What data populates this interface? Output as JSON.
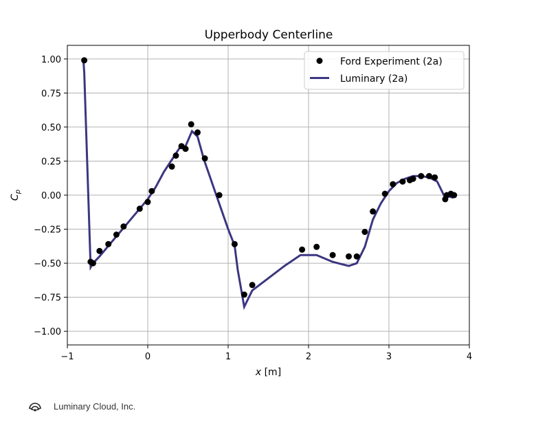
{
  "chart_data": {
    "type": "line",
    "title": "Upperbody Centerline",
    "xlabel": "x [m]",
    "ylabel": "Cp",
    "xlim": [
      -1,
      4
    ],
    "ylim": [
      -1.1,
      1.1
    ],
    "xticks": [
      -1,
      0,
      1,
      2,
      3,
      4
    ],
    "yticks": [
      -1.0,
      -0.75,
      -0.5,
      -0.25,
      0.0,
      0.25,
      0.5,
      0.75,
      1.0
    ],
    "xtick_labels": [
      "−1",
      "0",
      "1",
      "2",
      "3",
      "4"
    ],
    "ytick_labels": [
      "−1.00",
      "−0.75",
      "−0.50",
      "−0.25",
      "0.00",
      "0.25",
      "0.50",
      "0.75",
      "1.00"
    ],
    "grid": true,
    "legend_position": "top-right",
    "series": [
      {
        "name": "Ford Experiment (2a)",
        "kind": "scatter",
        "color": "#000000",
        "x": [
          -0.79,
          -0.71,
          -0.68,
          -0.6,
          -0.49,
          -0.39,
          -0.3,
          -0.1,
          0.0,
          0.05,
          0.3,
          0.35,
          0.42,
          0.47,
          0.54,
          0.62,
          0.71,
          0.89,
          1.08,
          1.2,
          1.3,
          1.92,
          2.1,
          2.3,
          2.5,
          2.6,
          2.7,
          2.8,
          2.95,
          3.05,
          3.17,
          3.26,
          3.3,
          3.4,
          3.5,
          3.57,
          3.7,
          3.72,
          3.77,
          3.81
        ],
        "y": [
          0.99,
          -0.49,
          -0.5,
          -0.41,
          -0.36,
          -0.29,
          -0.23,
          -0.1,
          -0.05,
          0.03,
          0.21,
          0.29,
          0.36,
          0.34,
          0.52,
          0.46,
          0.27,
          0.0,
          -0.36,
          -0.73,
          -0.66,
          -0.4,
          -0.38,
          -0.44,
          -0.45,
          -0.45,
          -0.27,
          -0.12,
          0.01,
          0.08,
          0.1,
          0.11,
          0.12,
          0.14,
          0.14,
          0.13,
          -0.03,
          0.0,
          0.01,
          0.0
        ]
      },
      {
        "name": "Luminary (2a)",
        "kind": "line",
        "color": "#3b3680",
        "x": [
          -0.8,
          -0.79,
          -0.71,
          -0.68,
          -0.6,
          -0.5,
          -0.4,
          -0.3,
          -0.2,
          -0.1,
          0.0,
          0.1,
          0.2,
          0.3,
          0.4,
          0.47,
          0.55,
          0.62,
          0.7,
          0.8,
          0.9,
          1.0,
          1.08,
          1.12,
          1.2,
          1.3,
          1.5,
          1.7,
          1.9,
          2.1,
          2.3,
          2.5,
          2.6,
          2.7,
          2.8,
          2.9,
          3.0,
          3.1,
          3.2,
          3.3,
          3.4,
          3.5,
          3.6,
          3.7,
          3.75,
          3.8
        ],
        "y": [
          0.99,
          0.9,
          -0.53,
          -0.5,
          -0.45,
          -0.38,
          -0.31,
          -0.24,
          -0.17,
          -0.1,
          -0.03,
          0.06,
          0.17,
          0.26,
          0.35,
          0.36,
          0.47,
          0.43,
          0.26,
          0.09,
          -0.08,
          -0.25,
          -0.37,
          -0.55,
          -0.82,
          -0.7,
          -0.61,
          -0.52,
          -0.44,
          -0.44,
          -0.49,
          -0.52,
          -0.5,
          -0.38,
          -0.18,
          -0.06,
          0.03,
          0.09,
          0.12,
          0.14,
          0.14,
          0.13,
          0.1,
          -0.02,
          -0.01,
          -0.02
        ]
      }
    ]
  },
  "footer": {
    "text": "Luminary Cloud, Inc.",
    "logo_icon": "luminary-logo-icon"
  }
}
